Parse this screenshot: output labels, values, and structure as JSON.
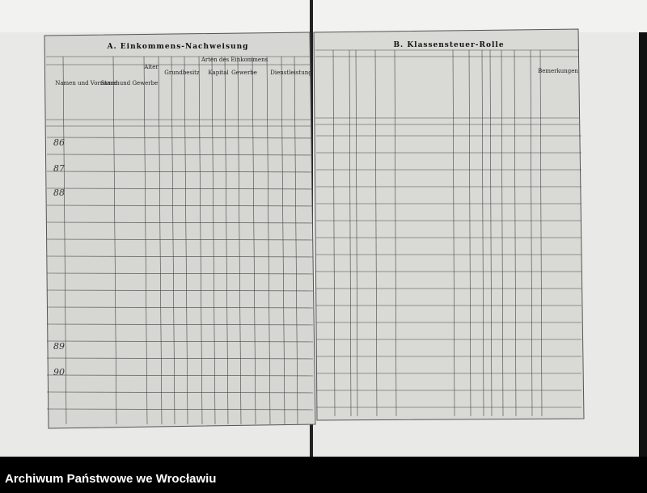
{
  "left_page": {
    "title": "A. Einkommens-Nachweisung",
    "columns": [
      "Namen und Vornamen",
      "Stand und Gewerbe",
      "Alter",
      "Arten des Einkommens",
      "Grundbesitz",
      "Kapital",
      "Gewerbe",
      "Dienstleistung"
    ],
    "row_numbers": [
      "86",
      "87",
      "88",
      "89",
      "90"
    ]
  },
  "right_page": {
    "title": "B. Klassensteuer-Rolle",
    "columns": [
      "Bemerkungen"
    ]
  },
  "footer": {
    "archive": "Archiwum Państwowe we Wrocławiu"
  }
}
